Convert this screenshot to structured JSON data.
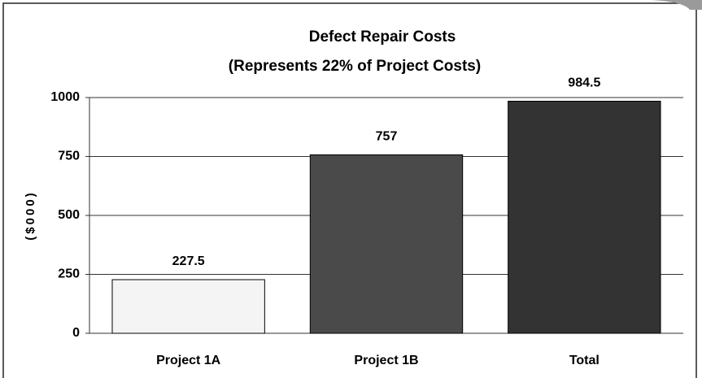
{
  "chart_data": {
    "type": "bar",
    "title": "Defect Repair Costs",
    "subtitle": "(Represents 22% of Project Costs)",
    "y_label": "($000)",
    "categories": [
      "Project 1A",
      "Project 1B",
      "Total"
    ],
    "values": [
      227.5,
      757,
      984.5
    ],
    "colors": [
      "#f4f4f4",
      "#4a4a4a",
      "#333333"
    ],
    "ylim": [
      0,
      1000
    ],
    "yticks": [
      0,
      250,
      500,
      750,
      1000
    ],
    "grid": true,
    "data_labels": true
  }
}
